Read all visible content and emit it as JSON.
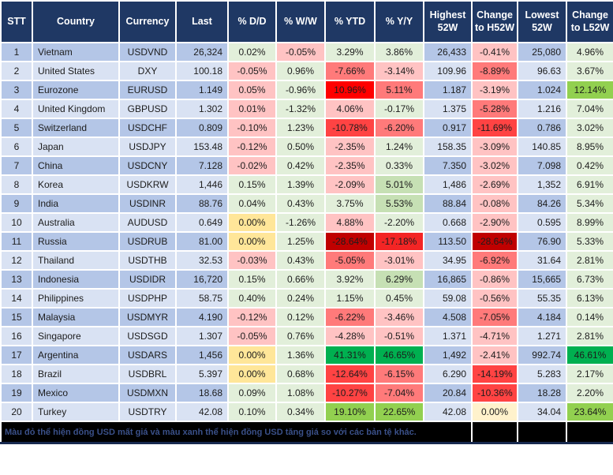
{
  "table": {
    "headers": [
      "STT",
      "Country",
      "Currency",
      "Last",
      "% D/D",
      "% W/W",
      "% YTD",
      "% Y/Y",
      "Highest 52W",
      "Change to H52W",
      "Lowest 52W",
      "Change to L52W"
    ],
    "rows": [
      [
        "1",
        "Vietnam",
        "USDVND",
        "26,324",
        [
          "0.02%",
          "lg"
        ],
        [
          "-0.05%",
          "lr"
        ],
        [
          "3.29%",
          "lg"
        ],
        [
          "3.86%",
          "lg"
        ],
        "26,433",
        [
          "-0.41%",
          "lr"
        ],
        "25,080",
        [
          "4.96%",
          "lg"
        ]
      ],
      [
        "2",
        "United States",
        "DXY",
        "100.18",
        [
          "-0.05%",
          "lr"
        ],
        [
          "0.96%",
          "lg"
        ],
        [
          "-7.66%",
          "mr"
        ],
        [
          "-3.14%",
          "lr"
        ],
        "109.96",
        [
          "-8.89%",
          "mr"
        ],
        "96.63",
        [
          "3.67%",
          "lg"
        ]
      ],
      [
        "3",
        "Eurozone",
        "EURUSD",
        "1.149",
        [
          "0.05%",
          "lr"
        ],
        [
          "-0.96%",
          "lg"
        ],
        [
          "10.96%",
          "br"
        ],
        [
          "5.11%",
          "mr"
        ],
        "1.187",
        [
          "-3.19%",
          "lr"
        ],
        "1.024",
        [
          "12.14%",
          "mg"
        ]
      ],
      [
        "4",
        "United Kingdom",
        "GBPUSD",
        "1.302",
        [
          "0.01%",
          "lr"
        ],
        [
          "-1.32%",
          "lg"
        ],
        [
          "4.06%",
          "lr"
        ],
        [
          "-0.17%",
          "lg"
        ],
        "1.375",
        [
          "-5.28%",
          "mr"
        ],
        "1.216",
        [
          "7.04%",
          "lg"
        ]
      ],
      [
        "5",
        "Switzerland",
        "USDCHF",
        "0.809",
        [
          "-0.10%",
          "lr"
        ],
        [
          "1.23%",
          "lg"
        ],
        [
          "-10.78%",
          "sr"
        ],
        [
          "-6.20%",
          "mr"
        ],
        "0.917",
        [
          "-11.69%",
          "sr"
        ],
        "0.786",
        [
          "3.02%",
          "lg"
        ]
      ],
      [
        "6",
        "Japan",
        "USDJPY",
        "153.48",
        [
          "-0.12%",
          "lr"
        ],
        [
          "0.50%",
          "lg"
        ],
        [
          "-2.35%",
          "lr"
        ],
        [
          "1.24%",
          "lg"
        ],
        "158.35",
        [
          "-3.09%",
          "lr"
        ],
        "140.85",
        [
          "8.95%",
          "lg"
        ]
      ],
      [
        "7",
        "China",
        "USDCNY",
        "7.128",
        [
          "-0.02%",
          "lr"
        ],
        [
          "0.42%",
          "lg"
        ],
        [
          "-2.35%",
          "lr"
        ],
        [
          "0.33%",
          "lg"
        ],
        "7.350",
        [
          "-3.02%",
          "lr"
        ],
        "7.098",
        [
          "0.42%",
          "lg"
        ]
      ],
      [
        "8",
        "Korea",
        "USDKRW",
        "1,446",
        [
          "0.15%",
          "lg"
        ],
        [
          "1.39%",
          "lg"
        ],
        [
          "-2.09%",
          "lr"
        ],
        [
          "5.01%",
          "g2"
        ],
        "1,486",
        [
          "-2.69%",
          "lr"
        ],
        "1,352",
        [
          "6.91%",
          "lg"
        ]
      ],
      [
        "9",
        "India",
        "USDINR",
        "88.76",
        [
          "0.04%",
          "lg"
        ],
        [
          "0.43%",
          "lg"
        ],
        [
          "3.75%",
          "lg"
        ],
        [
          "5.53%",
          "g2"
        ],
        "88.84",
        [
          "-0.08%",
          "lr"
        ],
        "84.26",
        [
          "5.34%",
          "lg"
        ]
      ],
      [
        "10",
        "Australia",
        "AUDUSD",
        "0.649",
        [
          "0.00%",
          "y"
        ],
        [
          "-1.26%",
          "lg"
        ],
        [
          "4.88%",
          "lr"
        ],
        [
          "-2.20%",
          "lg"
        ],
        "0.668",
        [
          "-2.90%",
          "lr"
        ],
        "0.595",
        [
          "8.99%",
          "lg"
        ]
      ],
      [
        "11",
        "Russia",
        "USDRUB",
        "81.00",
        [
          "0.00%",
          "y"
        ],
        [
          "1.25%",
          "lg"
        ],
        [
          "-28.64%",
          "dr"
        ],
        [
          "-17.18%",
          "xr"
        ],
        "113.50",
        [
          "-28.64%",
          "dr"
        ],
        "76.90",
        [
          "5.33%",
          "lg"
        ]
      ],
      [
        "12",
        "Thailand",
        "USDTHB",
        "32.53",
        [
          "-0.03%",
          "lr"
        ],
        [
          "0.43%",
          "lg"
        ],
        [
          "-5.05%",
          "mr"
        ],
        [
          "-3.01%",
          "lr"
        ],
        "34.95",
        [
          "-6.92%",
          "mr"
        ],
        "31.64",
        [
          "2.81%",
          "lg"
        ]
      ],
      [
        "13",
        "Indonesia",
        "USDIDR",
        "16,720",
        [
          "0.15%",
          "lg"
        ],
        [
          "0.66%",
          "lg"
        ],
        [
          "3.92%",
          "lg"
        ],
        [
          "6.29%",
          "g2"
        ],
        "16,865",
        [
          "-0.86%",
          "lr"
        ],
        "15,665",
        [
          "6.73%",
          "lg"
        ]
      ],
      [
        "14",
        "Philippines",
        "USDPHP",
        "58.75",
        [
          "0.40%",
          "lg"
        ],
        [
          "0.24%",
          "lg"
        ],
        [
          "1.15%",
          "lg"
        ],
        [
          "0.45%",
          "lg"
        ],
        "59.08",
        [
          "-0.56%",
          "lr"
        ],
        "55.35",
        [
          "6.13%",
          "lg"
        ]
      ],
      [
        "15",
        "Malaysia",
        "USDMYR",
        "4.190",
        [
          "-0.12%",
          "lr"
        ],
        [
          "0.12%",
          "lg"
        ],
        [
          "-6.22%",
          "mr"
        ],
        [
          "-3.46%",
          "lr"
        ],
        "4.508",
        [
          "-7.05%",
          "mr"
        ],
        "4.184",
        [
          "0.14%",
          "lg"
        ]
      ],
      [
        "16",
        "Singapore",
        "USDSGD",
        "1.307",
        [
          "-0.05%",
          "lr"
        ],
        [
          "0.76%",
          "lg"
        ],
        [
          "-4.28%",
          "lr"
        ],
        [
          "-0.51%",
          "lr"
        ],
        "1.371",
        [
          "-4.71%",
          "lr"
        ],
        "1.271",
        [
          "2.81%",
          "lg"
        ]
      ],
      [
        "17",
        "Argentina",
        "USDARS",
        "1,456",
        [
          "0.00%",
          "y"
        ],
        [
          "1.36%",
          "lg"
        ],
        [
          "41.31%",
          "sg"
        ],
        [
          "46.65%",
          "sg"
        ],
        "1,492",
        [
          "-2.41%",
          "lr"
        ],
        "992.74",
        [
          "46.61%",
          "sg"
        ]
      ],
      [
        "18",
        "Brazil",
        "USDBRL",
        "5.397",
        [
          "0.00%",
          "y"
        ],
        [
          "0.68%",
          "lg"
        ],
        [
          "-12.64%",
          "sr"
        ],
        [
          "-6.15%",
          "mr"
        ],
        "6.290",
        [
          "-14.19%",
          "sr"
        ],
        "5.283",
        [
          "2.17%",
          "lg"
        ]
      ],
      [
        "19",
        "Mexico",
        "USDMXN",
        "18.68",
        [
          "0.09%",
          "lg"
        ],
        [
          "1.08%",
          "lg"
        ],
        [
          "-10.27%",
          "sr"
        ],
        [
          "-7.04%",
          "mr"
        ],
        "20.84",
        [
          "-10.36%",
          "sr"
        ],
        "18.28",
        [
          "2.20%",
          "lg"
        ]
      ],
      [
        "20",
        "Turkey",
        "USDTRY",
        "42.08",
        [
          "0.10%",
          "lg"
        ],
        [
          "0.34%",
          "lg"
        ],
        [
          "19.10%",
          "mg"
        ],
        [
          "22.65%",
          "mg"
        ],
        "42.08",
        [
          "0.00%",
          "cy"
        ],
        "34.04",
        [
          "23.64%",
          "mg"
        ]
      ]
    ]
  },
  "footer": {
    "note": "Màu đỏ thể hiện đồng USD mất giá và màu xanh thể hiện đồng USD tăng giá so với các bản tệ khác."
  },
  "palette": {
    "lg": "#E2EFDA",
    "g2": "#C6E0B4",
    "mg": "#92D050",
    "sg": "#00B050",
    "lr": "#FFC3C3",
    "mr": "#FF7A7A",
    "sr": "#FF4343",
    "xr": "#F32525",
    "br": "#FF0000",
    "dr": "#C00000",
    "y": "#FFE699",
    "cy": "#FFF2CC",
    "rowOdd": "#B4C6E7",
    "rowEven": "#D9E2F3",
    "headerBg": "#1F3864",
    "footerBg": "#000000",
    "footerText": "#3A5089"
  }
}
